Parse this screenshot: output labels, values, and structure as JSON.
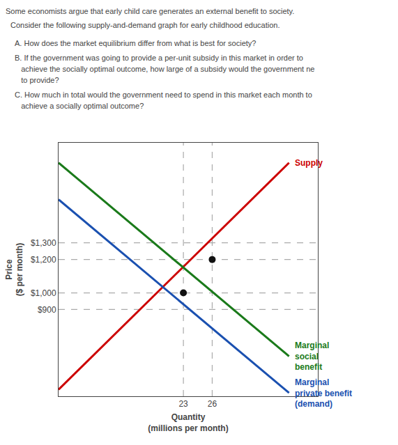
{
  "chart_data": {
    "type": "line",
    "title": "Some economists argue that early child care generates an external benefit to society.",
    "subtitle": "Consider the following supply-and-demand graph for early childhood education.",
    "annotations": [
      "A. How does the market equilibrium differ from what is best for society?",
      "B. If the government was going to provide a per-unit subsidy in this market in order to",
      "   achieve the socially optimal outcome, how large of a subsidy would the government ne",
      "   to provide?",
      "C. How much in total would the government need to spend in this market each month to",
      "   achieve a socially optimal outcome?"
    ],
    "x_label": "Quantity\n(millions per month)",
    "y_label": "Price\n($ per month)",
    "series": [
      {
        "name": "Supply",
        "type": "line",
        "color": "#cc0000",
        "x": [
          10,
          34
        ],
        "values": [
          420,
          1780
        ]
      },
      {
        "name": "Marginal\nsocial\nbenefit",
        "type": "line",
        "color": "#1a7a1a",
        "x": [
          10,
          34
        ],
        "values": [
          1780,
          620
        ]
      },
      {
        "name": "Marginal\nprivate benefit\n(demand)",
        "type": "line",
        "color": "#1a50b0",
        "x": [
          10,
          34
        ],
        "values": [
          1560,
          400
        ]
      },
      {
        "type": "scatter",
        "marker": "circle",
        "color": "#111111",
        "x": [
          23,
          26
        ],
        "values": [
          1000,
          1200
        ]
      }
    ],
    "vlines": [
      23,
      26
    ],
    "hlines": [
      1000,
      1300,
      1200,
      900
    ],
    "xlim": [
      10,
      37
    ],
    "ylim": [
      380,
      1900
    ],
    "xticks": [
      23,
      26
    ],
    "yticks": [
      {
        "value": 900,
        "label": "$900"
      },
      {
        "value": 1000,
        "label": "$1,000"
      },
      {
        "value": 1200,
        "label": "$1,200"
      },
      {
        "value": 1300,
        "label": "$1,300"
      }
    ],
    "grid": false
  }
}
